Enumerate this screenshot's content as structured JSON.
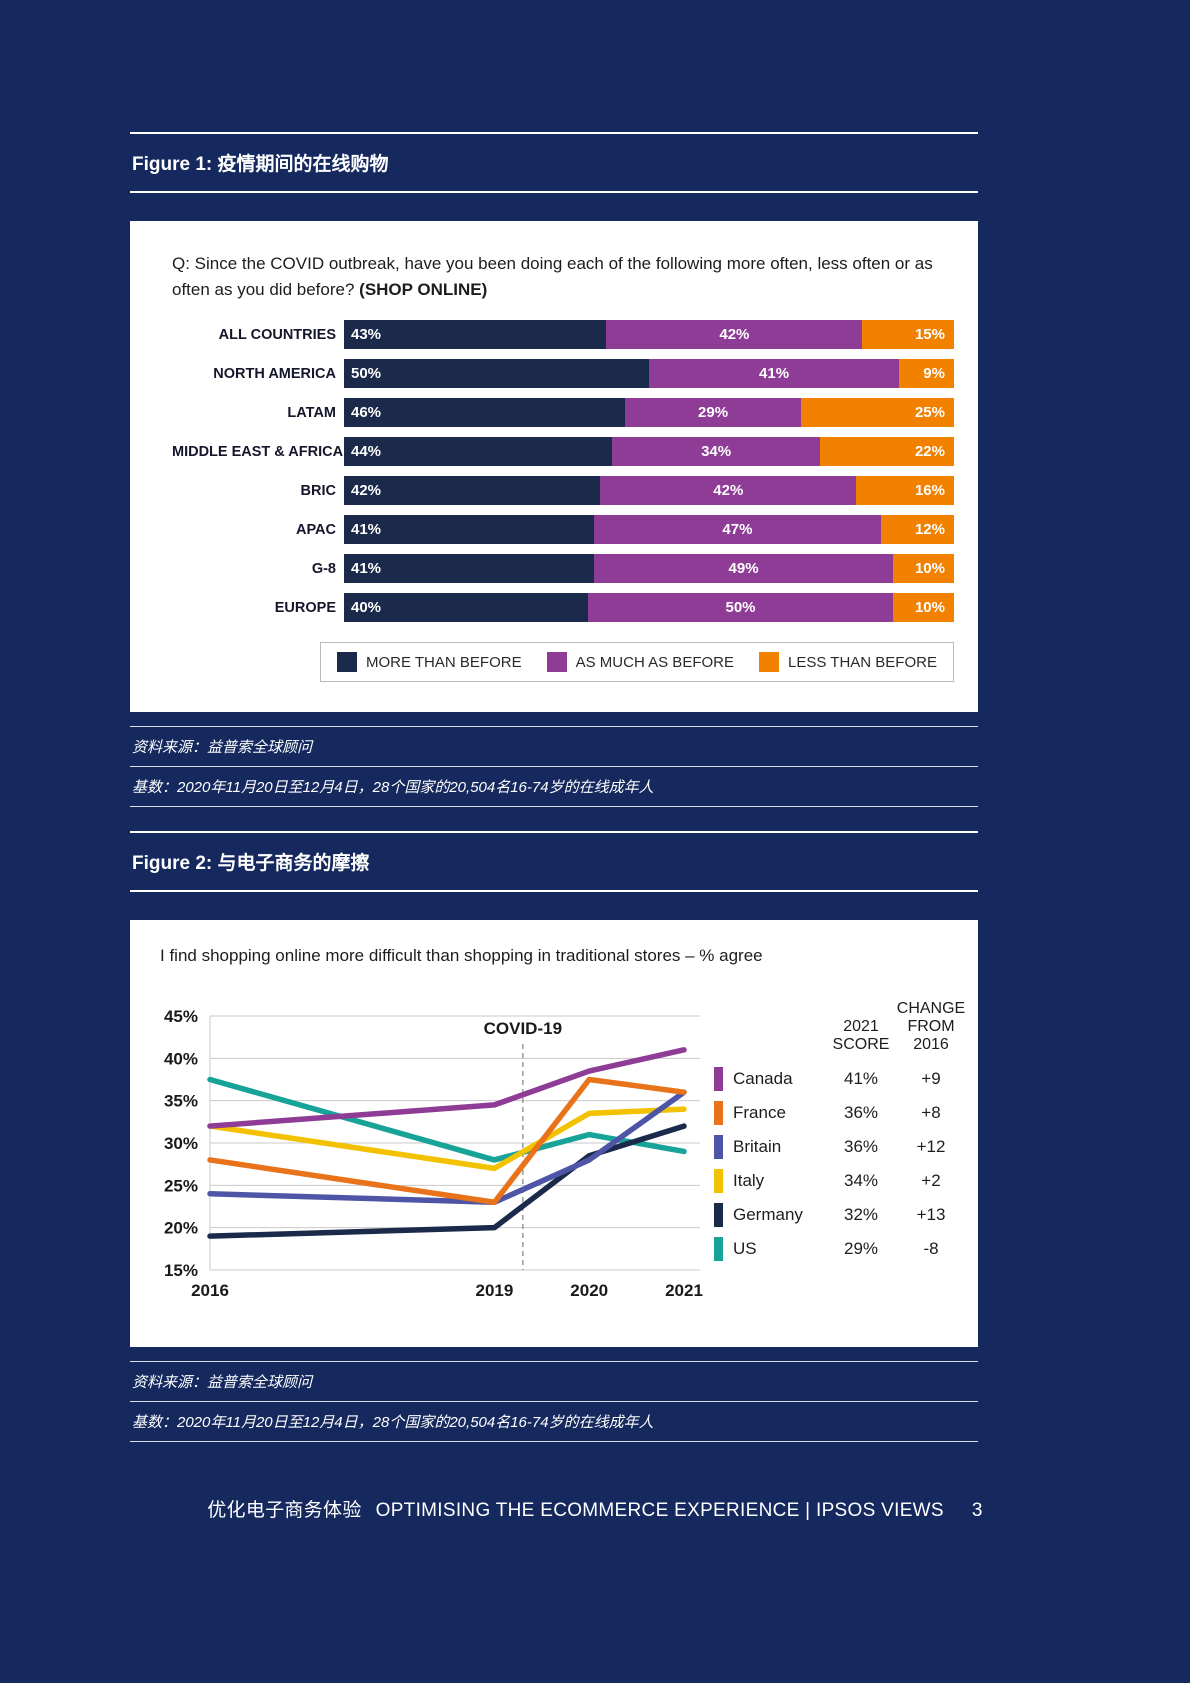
{
  "colors": {
    "page_bg": "#15295E",
    "navy": "#1B2A4A",
    "purple": "#8E3C96",
    "orange": "#F28100",
    "orange_line": "#E8731A",
    "blue": "#4E55A6",
    "yellow": "#F2C100",
    "teal": "#17A398"
  },
  "figure1": {
    "heading_prefix": "Figure 1:",
    "heading_title": "疫情期间的在线购物",
    "question_regular": "Q: Since the COVID outbreak, have you been doing each of the following more often, less often or as often as you did before?",
    "question_bold": "(SHOP ONLINE)",
    "source_line1": "资料来源：益普索全球顾问",
    "source_line2": "基数：2020年11月20日至12月4日，28个国家的20,504名16-74岁的在线成年人"
  },
  "figure2": {
    "heading_prefix": "Figure 2:",
    "heading_title": "与电子商务的摩擦",
    "source_line1": "资料来源：益普索全球顾问",
    "source_line2": "基数：2020年11月20日至12月4日，28个国家的20,504名16-74岁的在线成年人"
  },
  "chart_data": [
    {
      "type": "bar",
      "stacked": true,
      "orientation": "horizontal",
      "value_suffix": "%",
      "xlim": [
        0,
        100
      ],
      "legend_position": "bottom",
      "categories": [
        "ALL COUNTRIES",
        "NORTH AMERICA",
        "LATAM",
        "MIDDLE EAST & AFRICA",
        "BRIC",
        "APAC",
        "G-8",
        "EUROPE"
      ],
      "series": [
        {
          "name": "MORE THAN BEFORE",
          "color_key": "navy",
          "values": [
            43,
            50,
            46,
            44,
            42,
            41,
            41,
            40
          ]
        },
        {
          "name": "AS MUCH AS BEFORE",
          "color_key": "purple",
          "values": [
            42,
            41,
            29,
            34,
            42,
            47,
            49,
            50
          ]
        },
        {
          "name": "LESS THAN BEFORE",
          "color_key": "orange",
          "values": [
            15,
            9,
            25,
            22,
            16,
            12,
            10,
            10
          ]
        }
      ]
    },
    {
      "type": "line",
      "title": "I find shopping online more difficult than shopping in traditional stores – % agree",
      "x": [
        2016,
        2019,
        2020,
        2021
      ],
      "x_ticks": [
        "2016",
        "2019",
        "2020",
        "2021"
      ],
      "ylim": [
        15,
        45
      ],
      "y_tick_step": 5,
      "y_suffix": "%",
      "grid": true,
      "legend_position": "right",
      "annotation": {
        "label": "COVID-19",
        "x": 2019.3
      },
      "legend_headers": [
        "2021 SCORE",
        "CHANGE FROM 2016"
      ],
      "series": [
        {
          "name": "Canada",
          "color_key": "purple",
          "values": [
            32,
            34.5,
            38.5,
            41
          ],
          "score": "41%",
          "change": "+9"
        },
        {
          "name": "France",
          "color_key": "orange_line",
          "values": [
            28,
            23,
            37.5,
            36
          ],
          "score": "36%",
          "change": "+8"
        },
        {
          "name": "Britain",
          "color_key": "blue",
          "values": [
            24,
            23,
            28,
            36
          ],
          "score": "36%",
          "change": "+12"
        },
        {
          "name": "Italy",
          "color_key": "yellow",
          "values": [
            32,
            27,
            33.5,
            34
          ],
          "score": "34%",
          "change": "+2"
        },
        {
          "name": "Germany",
          "color_key": "navy",
          "values": [
            19,
            20,
            28.5,
            32
          ],
          "score": "32%",
          "change": "+13"
        },
        {
          "name": "US",
          "color_key": "teal",
          "values": [
            37.5,
            28,
            31,
            29
          ],
          "score": "29%",
          "change": "-8"
        }
      ]
    }
  ],
  "footer": {
    "cn": "优化电子商务体验",
    "en": "OPTIMISING THE ECOMMERCE EXPERIENCE | IPSOS VIEWS",
    "page": "3"
  }
}
